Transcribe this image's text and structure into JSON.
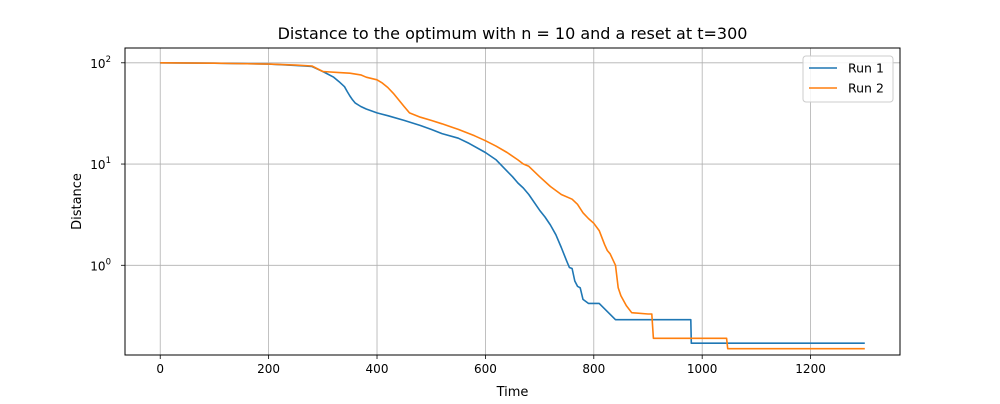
{
  "chart_data": {
    "type": "line",
    "title": "Distance to the optimum with n = 10 and a reset at t=300",
    "xlabel": "Time",
    "ylabel": "Distance",
    "xlim": [
      -65,
      1365
    ],
    "ylim": [
      0.13,
      140
    ],
    "yscale": "log",
    "x_ticks": [
      0,
      200,
      400,
      600,
      800,
      1000,
      1200
    ],
    "x_tick_labels": [
      "0",
      "200",
      "400",
      "600",
      "800",
      "1000",
      "1200"
    ],
    "y_ticks": [
      1,
      10,
      100
    ],
    "y_tick_base": "10",
    "y_tick_exponents": [
      "0",
      "1",
      "2"
    ],
    "grid": true,
    "legend_position": "top-right",
    "series": [
      {
        "name": "Run 1",
        "color": "#1f77b4",
        "x": [
          0,
          100,
          200,
          250,
          280,
          300,
          320,
          330,
          340,
          345,
          350,
          355,
          360,
          370,
          380,
          400,
          420,
          450,
          480,
          500,
          520,
          550,
          570,
          600,
          620,
          640,
          650,
          660,
          670,
          680,
          700,
          710,
          720,
          730,
          740,
          750,
          755,
          760,
          765,
          770,
          775,
          780,
          790,
          800,
          810,
          840,
          900,
          979,
          980,
          1300
        ],
        "y": [
          100,
          99,
          97,
          94,
          92,
          82,
          72,
          65,
          58,
          52,
          47,
          43,
          40,
          37,
          35,
          32,
          30,
          27,
          24,
          22,
          20,
          18,
          16,
          13,
          11,
          8.5,
          7.5,
          6.5,
          5.8,
          5,
          3.5,
          3,
          2.5,
          2.0,
          1.5,
          1.1,
          0.95,
          0.93,
          0.7,
          0.62,
          0.6,
          0.46,
          0.42,
          0.42,
          0.42,
          0.29,
          0.29,
          0.29,
          0.17,
          0.17
        ]
      },
      {
        "name": "Run 2",
        "color": "#ff7f0e",
        "x": [
          0,
          100,
          200,
          250,
          280,
          300,
          330,
          350,
          370,
          380,
          400,
          410,
          420,
          430,
          440,
          450,
          460,
          480,
          500,
          520,
          550,
          580,
          600,
          620,
          640,
          660,
          670,
          680,
          700,
          720,
          740,
          760,
          770,
          780,
          790,
          800,
          810,
          820,
          825,
          830,
          840,
          845,
          850,
          860,
          870,
          900,
          907,
          910,
          975,
          980,
          1045,
          1047,
          1300
        ],
        "y": [
          100,
          99,
          97,
          95,
          93,
          82,
          80,
          79,
          76,
          72,
          68,
          63,
          57,
          50,
          43,
          37,
          32,
          29,
          27,
          25,
          22,
          19,
          17,
          15,
          13,
          11,
          10,
          9.5,
          7.5,
          6,
          5,
          4.5,
          4.0,
          3.3,
          2.9,
          2.6,
          2.2,
          1.6,
          1.4,
          1.3,
          1.0,
          0.6,
          0.5,
          0.4,
          0.34,
          0.33,
          0.33,
          0.19,
          0.19,
          0.19,
          0.19,
          0.15,
          0.15
        ]
      }
    ]
  }
}
